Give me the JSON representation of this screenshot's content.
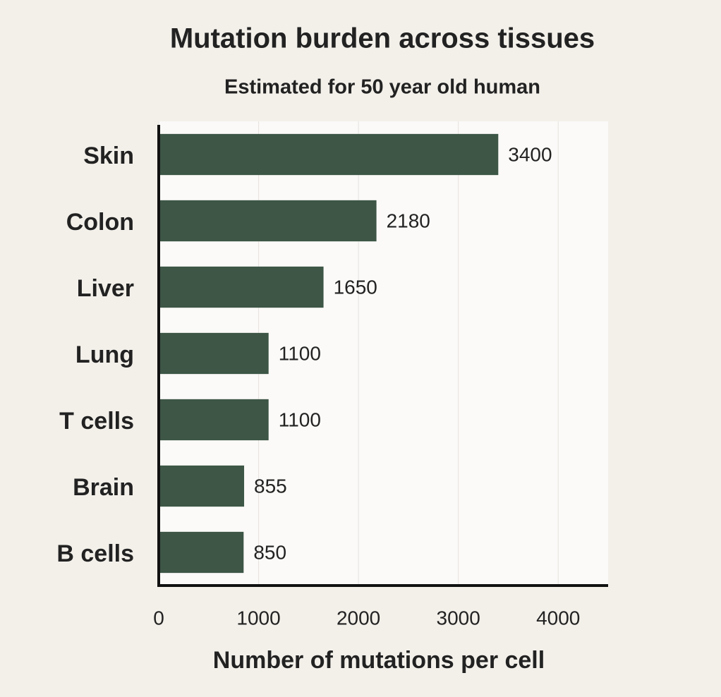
{
  "chart_data": {
    "type": "bar",
    "orientation": "horizontal",
    "title": "Mutation burden across tissues",
    "subtitle": "Estimated for 50 year old human",
    "x_label": "Number of mutations per cell",
    "categories": [
      "Skin",
      "Colon",
      "Liver",
      "Lung",
      "T cells",
      "Brain",
      "B cells"
    ],
    "values": [
      3400,
      2180,
      1650,
      1100,
      1100,
      855,
      850
    ],
    "color": "#3d5646",
    "xlim": [
      0,
      4500
    ],
    "xticks": [
      0,
      1000,
      2000,
      3000,
      4000
    ],
    "grid": true
  }
}
